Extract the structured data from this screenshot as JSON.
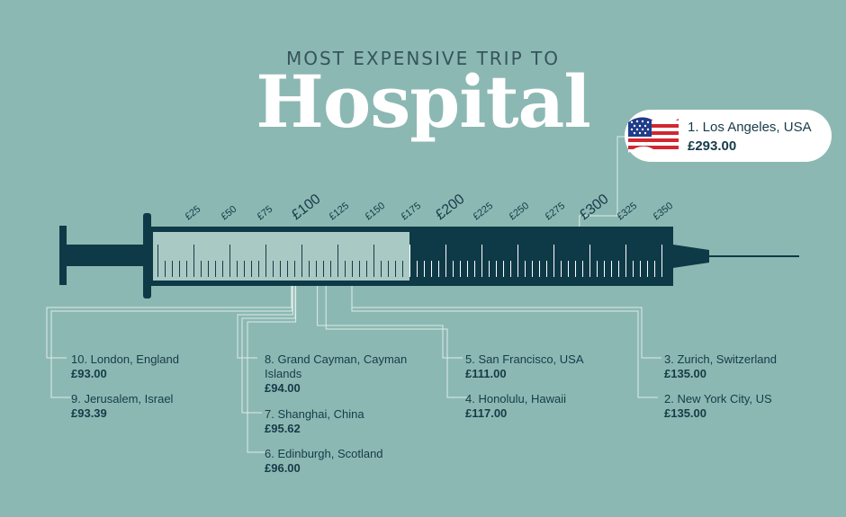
{
  "header": {
    "subtitle": "MOST EXPENSIVE TRIP TO",
    "title": "Hospital"
  },
  "colors": {
    "background": "#8cb8b3",
    "syringe_dark": "#0e3a47",
    "syringe_barrel_light": "#a9c9c4",
    "text_dark": "#163b48",
    "leader_line": "#ddebe8",
    "white": "#ffffff"
  },
  "chart_data": {
    "type": "bar",
    "title": "Hospital",
    "subtitle": "MOST EXPENSIVE TRIP TO",
    "orientation": "horizontal",
    "scale_ticks": [
      "£25",
      "£50",
      "£75",
      "£100",
      "£125",
      "£150",
      "£175",
      "£200",
      "£225",
      "£250",
      "£275",
      "£300",
      "£325",
      "£350"
    ],
    "major_ticks": [
      "£100",
      "£200",
      "£300"
    ],
    "xlim": [
      0,
      350
    ],
    "fill_value": 175,
    "categories": [
      "1. Los Angeles, USA",
      "2. New York City, US",
      "3. Zurich, Switzerland",
      "4. Honolulu, Hawaii",
      "5. San Francisco, USA",
      "6. Edinburgh, Scotland",
      "7. Shanghai, China",
      "8. Grand Cayman, Cayman Islands",
      "9. Jerusalem, Israel",
      "10. London, England"
    ],
    "values": [
      293.0,
      135.0,
      135.0,
      117.0,
      111.0,
      96.0,
      95.62,
      94.0,
      93.39,
      93.0
    ],
    "labels": [
      {
        "city": "1. Los Angeles, USA",
        "price": "£293.00",
        "value": 293.0,
        "flag": "usa-flag-icon"
      },
      {
        "city": "2. New York City, US",
        "price": "£135.00",
        "value": 135.0
      },
      {
        "city": "3. Zurich, Switzerland",
        "price": "£135.00",
        "value": 135.0
      },
      {
        "city": "4. Honolulu, Hawaii",
        "price": "£117.00",
        "value": 117.0
      },
      {
        "city": "5. San Francisco, USA",
        "price": "£111.00",
        "value": 111.0
      },
      {
        "city": "6. Edinburgh, Scotland",
        "price": "£96.00",
        "value": 96.0
      },
      {
        "city": "7. Shanghai, China",
        "price": "£95.62",
        "value": 95.62
      },
      {
        "city": "8. Grand Cayman, Cayman Islands",
        "price": "£94.00",
        "value": 94.0
      },
      {
        "city": "9. Jerusalem, Israel",
        "price": "£93.39",
        "value": 93.39
      },
      {
        "city": "10. London, England",
        "price": "£93.00",
        "value": 93.0
      }
    ]
  }
}
